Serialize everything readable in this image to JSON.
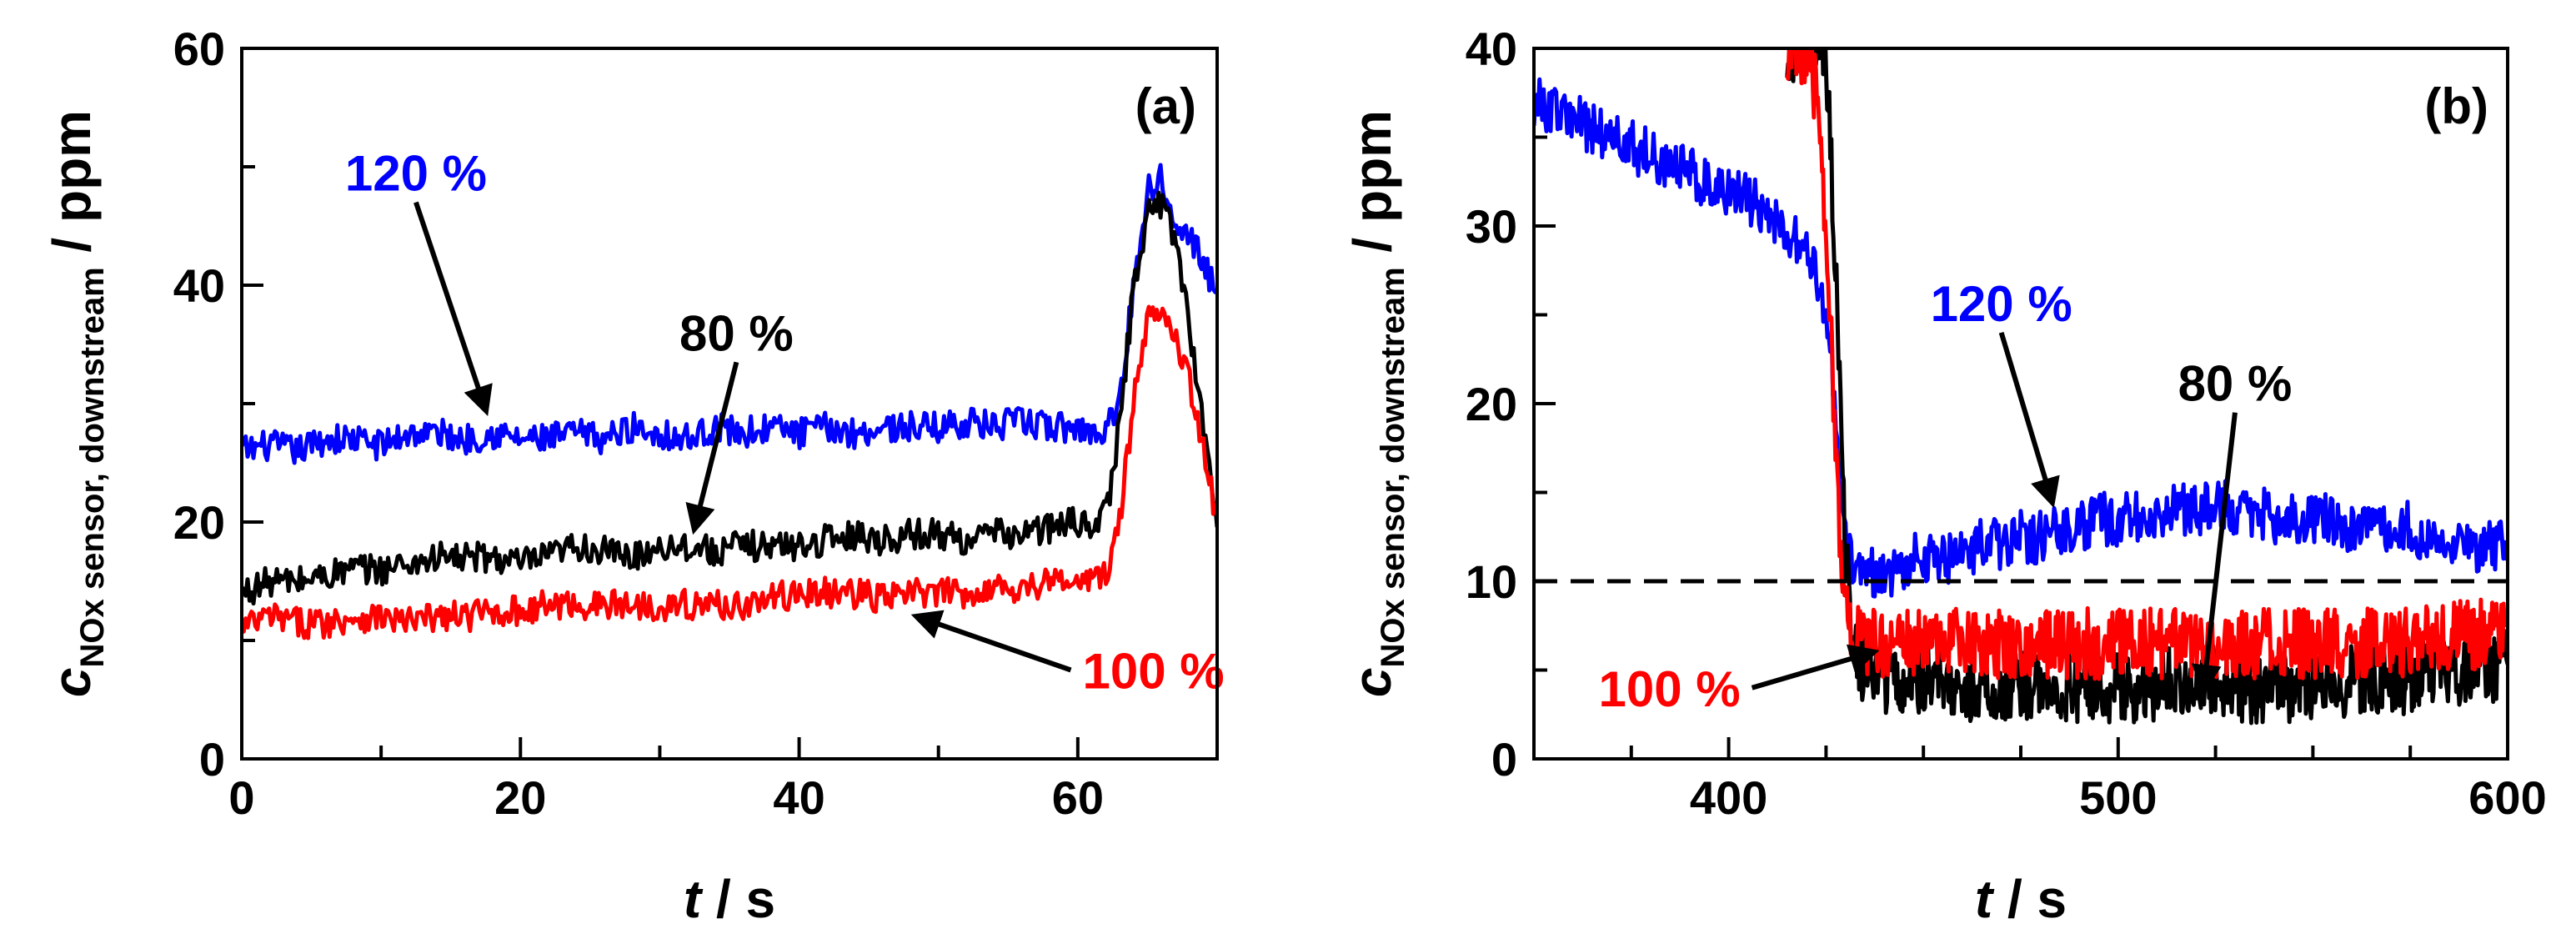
{
  "chart_data": [
    {
      "type": "line",
      "panel": "(a)",
      "xlabel_var": "t",
      "xlabel_unit": " / s",
      "ylabel_var": "c",
      "ylabel_sub": "NOx sensor, downstream",
      "ylabel_unit": " / ppm",
      "xlim": [
        0,
        70
      ],
      "ylim": [
        0,
        60
      ],
      "xticks": [
        0,
        20,
        40,
        60
      ],
      "yticks": [
        0,
        20,
        40,
        60
      ],
      "grid": false,
      "series": [
        {
          "name": "120 %",
          "color": "#0000ff",
          "x": [
            0,
            2,
            4,
            6,
            8,
            10,
            12,
            14,
            16,
            18,
            20,
            22,
            24,
            26,
            28,
            30,
            32,
            34,
            36,
            38,
            40,
            42,
            44,
            46,
            48,
            50,
            52,
            54,
            56,
            58,
            60,
            61,
            62,
            63,
            64,
            65,
            66,
            67,
            68,
            69,
            70
          ],
          "y": [
            26,
            26.5,
            26,
            27,
            27,
            26.5,
            27.5,
            27.5,
            27,
            27.5,
            27,
            27,
            27.5,
            27,
            28,
            27.5,
            27,
            28,
            27.5,
            28,
            27.5,
            28,
            27.5,
            28,
            28,
            28,
            28.5,
            28,
            28.5,
            28,
            28,
            27.5,
            28,
            30,
            40,
            48,
            49,
            46,
            44,
            42,
            39
          ]
        },
        {
          "name": "80 %",
          "color": "#000000",
          "x": [
            0,
            2,
            4,
            6,
            8,
            10,
            12,
            14,
            16,
            18,
            20,
            22,
            24,
            26,
            28,
            30,
            32,
            34,
            36,
            38,
            40,
            42,
            44,
            46,
            48,
            50,
            52,
            54,
            56,
            58,
            60,
            61,
            62,
            63,
            64,
            65,
            66,
            67,
            68,
            69,
            70
          ],
          "y": [
            14,
            15,
            15,
            15.5,
            16,
            16,
            16.5,
            17,
            17,
            17,
            16.5,
            17,
            18,
            17.5,
            17,
            18,
            18,
            17.5,
            18,
            18,
            18,
            18.5,
            19,
            18.5,
            19,
            19,
            18.5,
            19,
            19,
            19.5,
            20,
            20,
            20.5,
            28,
            40,
            46,
            47,
            44,
            37,
            28,
            20
          ]
        },
        {
          "name": "100 %",
          "color": "#ff0000",
          "x": [
            0,
            2,
            4,
            6,
            8,
            10,
            12,
            14,
            16,
            18,
            20,
            22,
            24,
            26,
            28,
            30,
            32,
            34,
            36,
            38,
            40,
            42,
            44,
            46,
            48,
            50,
            52,
            54,
            56,
            58,
            60,
            61,
            62,
            63,
            64,
            65,
            66,
            67,
            68,
            69,
            70
          ],
          "y": [
            11,
            12,
            11.5,
            11.5,
            12,
            12,
            11.5,
            12,
            12,
            12.5,
            12.5,
            13,
            13,
            13,
            13,
            13,
            13,
            13,
            13,
            13.5,
            14,
            14,
            14,
            13.5,
            14,
            14,
            14,
            14.5,
            14.5,
            15,
            15,
            15,
            15.5,
            20,
            30,
            37,
            38.5,
            36,
            32,
            26,
            20
          ]
        }
      ],
      "annotations": [
        {
          "text": "120 %",
          "color": "#0000ff",
          "from": [
            12.5,
            47
          ],
          "to": [
            17.5,
            29.5
          ]
        },
        {
          "text": "80 %",
          "color": "#000000",
          "from": [
            35.5,
            33.5
          ],
          "to": [
            32.5,
            19.5
          ]
        },
        {
          "text": "100 %",
          "color": "#ff0000",
          "from": [
            59.5,
            7.5
          ],
          "to": [
            48.5,
            12
          ]
        }
      ]
    },
    {
      "type": "line",
      "panel": "(b)",
      "xlabel_var": "t",
      "xlabel_unit": " / s",
      "ylabel_var": "c",
      "ylabel_sub": "NOx sensor, downstream",
      "ylabel_unit": " / ppm",
      "xlim": [
        350,
        600
      ],
      "ylim": [
        0,
        40
      ],
      "xticks": [
        400,
        500,
        600
      ],
      "yticks": [
        0,
        10,
        20,
        30,
        40
      ],
      "grid": false,
      "reference_line": {
        "y": 10,
        "style": "dashed",
        "color": "#000000"
      },
      "series": [
        {
          "name": "120 %",
          "color": "#0000ff",
          "x": [
            350,
            355,
            360,
            365,
            370,
            375,
            380,
            385,
            390,
            395,
            400,
            405,
            410,
            415,
            420,
            423,
            426,
            428,
            430,
            432,
            435,
            440,
            445,
            450,
            455,
            460,
            465,
            470,
            475,
            480,
            485,
            490,
            495,
            500,
            505,
            510,
            515,
            520,
            525,
            530,
            535,
            540,
            545,
            550,
            555,
            560,
            565,
            570,
            575,
            580,
            585,
            590,
            595,
            600
          ],
          "y": [
            37,
            36.5,
            36,
            35.5,
            35,
            34.5,
            34,
            33.5,
            33,
            32.5,
            32,
            31.5,
            30.5,
            29.5,
            28.5,
            27,
            24,
            18,
            12,
            10.5,
            10.5,
            10.5,
            11,
            11.5,
            11,
            11.5,
            12,
            12,
            12.5,
            12.5,
            13,
            13,
            13.5,
            13.5,
            13.5,
            14,
            14,
            14,
            14.5,
            14,
            14,
            13.5,
            13.5,
            13.5,
            13.5,
            13,
            13,
            13,
            13,
            12.5,
            12.5,
            12,
            12,
            12
          ]
        },
        {
          "name": "80 %",
          "color": "#000000",
          "x": [
            415,
            420,
            425,
            428,
            430,
            432,
            435,
            440,
            445,
            450,
            455,
            460,
            465,
            470,
            475,
            480,
            485,
            490,
            495,
            500,
            505,
            510,
            515,
            520,
            525,
            530,
            535,
            540,
            545,
            550,
            555,
            560,
            565,
            570,
            575,
            580,
            585,
            590,
            595,
            600
          ],
          "y": [
            40,
            40,
            40,
            25,
            12,
            6,
            5,
            4.5,
            4.5,
            4.5,
            4.5,
            4,
            4,
            4,
            4,
            4,
            4,
            4,
            4,
            4,
            4,
            4,
            4.5,
            4.5,
            4.5,
            4,
            4,
            4,
            4,
            4,
            4,
            4.5,
            4.5,
            4.5,
            4.5,
            5,
            5,
            5,
            5,
            5.5
          ]
        },
        {
          "name": "100 %",
          "color": "#ff0000",
          "x": [
            415,
            420,
            423,
            425,
            428,
            430,
            432,
            435,
            440,
            445,
            450,
            455,
            460,
            465,
            470,
            475,
            480,
            485,
            490,
            495,
            500,
            505,
            510,
            515,
            520,
            525,
            530,
            535,
            540,
            545,
            550,
            555,
            560,
            565,
            570,
            575,
            580,
            585,
            590,
            595,
            600
          ],
          "y": [
            40,
            39.5,
            37,
            30,
            15,
            8,
            7,
            6.5,
            6.5,
            6.5,
            6.5,
            6.5,
            6.5,
            6.5,
            6.5,
            6.5,
            6.5,
            6.5,
            6.5,
            6.5,
            6.5,
            6.5,
            6.5,
            6.5,
            6.5,
            6.5,
            6.5,
            6.5,
            6.5,
            6.5,
            6.5,
            6.5,
            6.5,
            6.5,
            6.5,
            6.5,
            7,
            7,
            7,
            7,
            7
          ]
        }
      ],
      "annotations": [
        {
          "text": "120 %",
          "color": "#0000ff",
          "from": [
            470,
            24
          ],
          "to": [
            483,
            14.5
          ]
        },
        {
          "text": "80 %",
          "color": "#000000",
          "from": [
            530,
            19.5
          ],
          "to": [
            522,
            4
          ]
        },
        {
          "text": "100 %",
          "color": "#ff0000",
          "from": [
            406,
            4
          ],
          "to": [
            437,
            6
          ]
        }
      ]
    }
  ]
}
